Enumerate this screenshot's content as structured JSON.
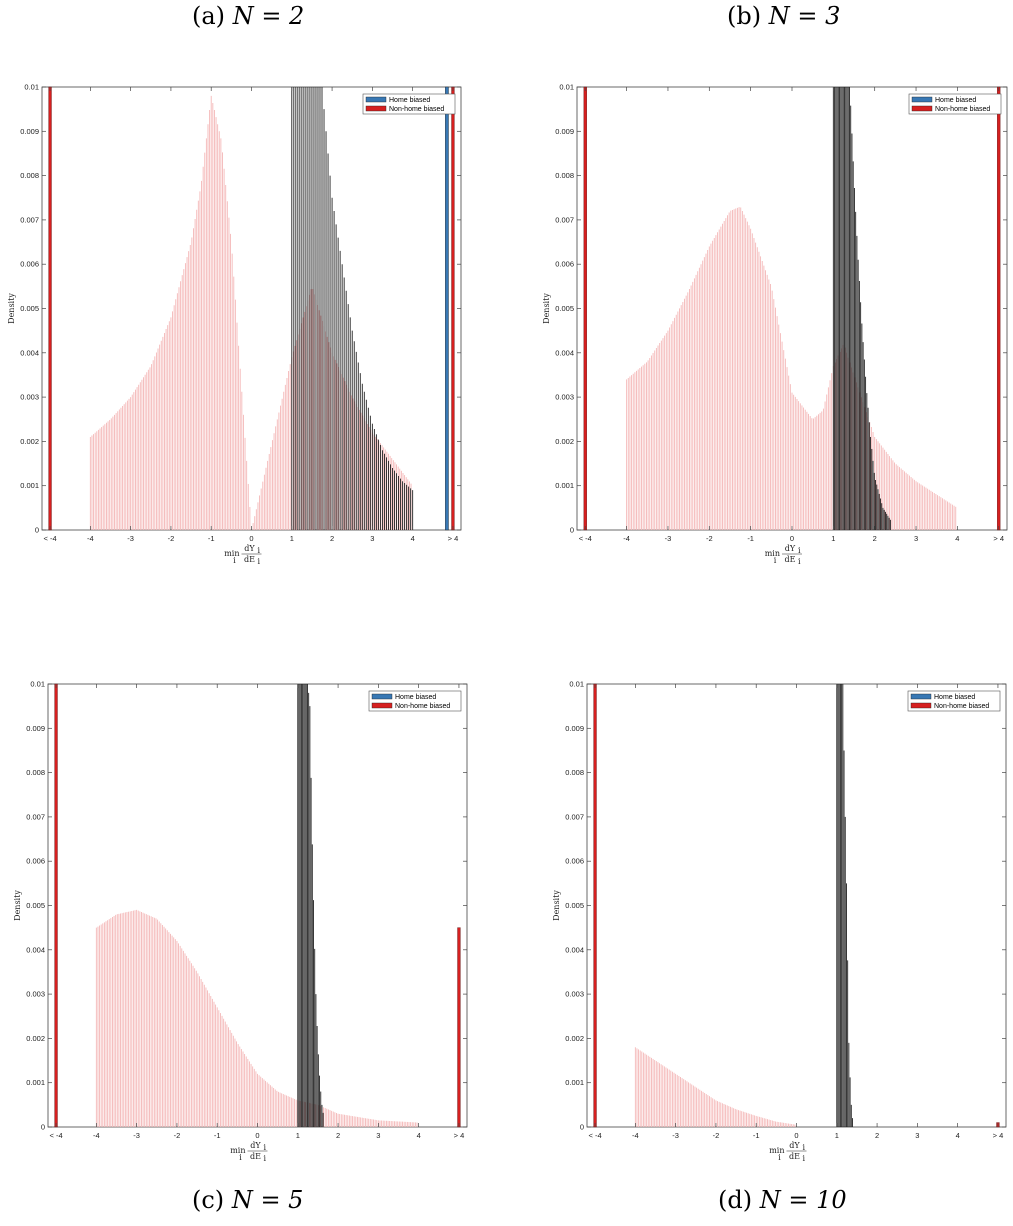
{
  "captions": [
    {
      "label": "(a)",
      "math": "N = 2"
    },
    {
      "label": "(b)",
      "math": "N = 3"
    },
    {
      "label": "(c)",
      "math": "N = 5"
    },
    {
      "label": "(d)",
      "math": "N = 10"
    }
  ],
  "colors": {
    "home": "#3878b4",
    "nonhome": "#d62020",
    "home_edge": "#222222",
    "nonhome_light": "#f4b8b8",
    "axis": "#444444"
  },
  "chart_data": [
    {
      "type": "bar",
      "ylabel": "Density",
      "xlabel": "min_i dY_i / dE_i",
      "ylim": [
        0,
        0.01
      ],
      "yticks": [
        "0",
        "0.001",
        "0.002",
        "0.003",
        "0.004",
        "0.005",
        "0.006",
        "0.007",
        "0.008",
        "0.009",
        "0.01"
      ],
      "xticks": [
        "< -4",
        "-4",
        "-3",
        "-2",
        "-1",
        "0",
        "1",
        "2",
        "3",
        "4",
        "> 4"
      ],
      "legend": [
        "Home biased",
        "Non-home biased"
      ],
      "legend_position": "top-right",
      "series": [
        {
          "name": "Home biased",
          "x": [
            1.0,
            1.25,
            1.5,
            1.75,
            2.0,
            2.25,
            2.5,
            2.75,
            3.0,
            3.25,
            3.5,
            3.75,
            4.0
          ],
          "values": [
            0.01,
            0.01,
            0.01,
            0.01,
            0.0075,
            0.006,
            0.0045,
            0.0033,
            0.0024,
            0.0018,
            0.0014,
            0.0011,
            0.0009
          ],
          "tail_low": 0.0,
          "tail_high": 0.01
        },
        {
          "name": "Non-home biased",
          "x": [
            -4.0,
            -3.5,
            -3.0,
            -2.5,
            -2.0,
            -1.5,
            -1.25,
            -1.0,
            -0.75,
            -0.5,
            0.0,
            1.0,
            1.5,
            2.0,
            2.5,
            3.0,
            3.5,
            4.0
          ],
          "values": [
            0.0021,
            0.0025,
            0.003,
            0.0037,
            0.0048,
            0.0065,
            0.0078,
            0.0098,
            0.0088,
            0.0065,
            0.0,
            0.0039,
            0.0055,
            0.004,
            0.003,
            0.0022,
            0.0016,
            0.001
          ],
          "tail_low": 0.01,
          "tail_high": 0.01
        }
      ]
    },
    {
      "type": "bar",
      "ylabel": "Density",
      "xlabel": "min_i dY_i / dE_i",
      "ylim": [
        0,
        0.01
      ],
      "yticks": [
        "0",
        "0.001",
        "0.002",
        "0.003",
        "0.004",
        "0.005",
        "0.006",
        "0.007",
        "0.008",
        "0.009",
        "0.01"
      ],
      "xticks": [
        "< -4",
        "-4",
        "-3",
        "-2",
        "-1",
        "0",
        "1",
        "2",
        "3",
        "4",
        "> 4"
      ],
      "legend": [
        "Home biased",
        "Non-home biased"
      ],
      "legend_position": "top-right",
      "series": [
        {
          "name": "Home biased",
          "x": [
            1.0,
            1.1,
            1.2,
            1.3,
            1.4,
            1.5,
            1.6,
            1.7,
            1.8,
            1.9,
            2.0,
            2.2,
            2.4
          ],
          "values": [
            0.01,
            0.01,
            0.01,
            0.01,
            0.01,
            0.0079,
            0.0061,
            0.0045,
            0.0032,
            0.0021,
            0.0012,
            0.0005,
            0.0002
          ],
          "tail_low": 0.0,
          "tail_high": 0.0
        },
        {
          "name": "Non-home biased",
          "x": [
            -4.0,
            -3.5,
            -3.0,
            -2.5,
            -2.0,
            -1.5,
            -1.25,
            -1.0,
            -0.5,
            0.0,
            0.5,
            0.75,
            1.0,
            1.25,
            1.5,
            2.0,
            2.5,
            3.0,
            3.5,
            4.0
          ],
          "values": [
            0.0034,
            0.0038,
            0.0045,
            0.0054,
            0.0064,
            0.0072,
            0.0073,
            0.0068,
            0.0055,
            0.0031,
            0.0025,
            0.0027,
            0.0037,
            0.0042,
            0.0035,
            0.0021,
            0.0015,
            0.0011,
            0.0008,
            0.0005
          ],
          "tail_low": 0.01,
          "tail_high": 0.01
        }
      ]
    },
    {
      "type": "bar",
      "ylabel": "Density",
      "xlabel": "min_i dY_i / dE_i",
      "ylim": [
        0,
        0.01
      ],
      "yticks": [
        "0",
        "0.001",
        "0.002",
        "0.003",
        "0.004",
        "0.005",
        "0.006",
        "0.007",
        "0.008",
        "0.009",
        "0.01"
      ],
      "xticks": [
        "< -4",
        "-4",
        "-3",
        "-2",
        "-1",
        "0",
        "1",
        "2",
        "3",
        "4",
        "> 4"
      ],
      "legend": [
        "Home biased",
        "Non-home biased"
      ],
      "legend_position": "top-right",
      "series": [
        {
          "name": "Home biased",
          "x": [
            1.0,
            1.05,
            1.1,
            1.15,
            1.2,
            1.25,
            1.3,
            1.35,
            1.4,
            1.45,
            1.5,
            1.55,
            1.6,
            1.65
          ],
          "values": [
            0.01,
            0.01,
            0.01,
            0.01,
            0.01,
            0.01,
            0.0095,
            0.0068,
            0.0047,
            0.003,
            0.0018,
            0.001,
            0.0005,
            0.0002
          ],
          "tail_low": 0.0,
          "tail_high": 0.0
        },
        {
          "name": "Non-home biased",
          "x": [
            -4.0,
            -3.5,
            -3.0,
            -2.5,
            -2.0,
            -1.5,
            -1.0,
            -0.5,
            0.0,
            0.5,
            1.0,
            1.5,
            2.0,
            3.0,
            4.0
          ],
          "values": [
            0.0045,
            0.0048,
            0.0049,
            0.0047,
            0.0042,
            0.0035,
            0.0027,
            0.0019,
            0.0012,
            0.0008,
            0.0006,
            0.0005,
            0.0003,
            0.00015,
            0.0001
          ],
          "tail_low": 0.01,
          "tail_high": 0.0045
        }
      ]
    },
    {
      "type": "bar",
      "ylabel": "Density",
      "xlabel": "min_i dY_i / dE_i",
      "ylim": [
        0,
        0.01
      ],
      "yticks": [
        "0",
        "0.001",
        "0.002",
        "0.003",
        "0.004",
        "0.005",
        "0.006",
        "0.007",
        "0.008",
        "0.009",
        "0.01"
      ],
      "xticks": [
        "< -4",
        "-4",
        "-3",
        "-2",
        "-1",
        "0",
        "1",
        "2",
        "3",
        "4",
        "> 4"
      ],
      "legend": [
        "Home biased",
        "Non-home biased"
      ],
      "legend_position": "top-right",
      "series": [
        {
          "name": "Home biased",
          "x": [
            1.0,
            1.05,
            1.1,
            1.15,
            1.2,
            1.25,
            1.3,
            1.35,
            1.4
          ],
          "values": [
            0.01,
            0.01,
            0.01,
            0.01,
            0.0075,
            0.005,
            0.0019,
            0.0006,
            0.0001
          ],
          "tail_low": 0.0,
          "tail_high": 0.0
        },
        {
          "name": "Non-home biased",
          "x": [
            -4.0,
            -3.5,
            -3.0,
            -2.5,
            -2.0,
            -1.5,
            -1.0,
            -0.5,
            0.0
          ],
          "values": [
            0.0018,
            0.0015,
            0.0012,
            0.0009,
            0.0006,
            0.0004,
            0.00025,
            0.00012,
            5e-05
          ],
          "tail_low": 0.01,
          "tail_high": 0.0001
        }
      ]
    }
  ]
}
